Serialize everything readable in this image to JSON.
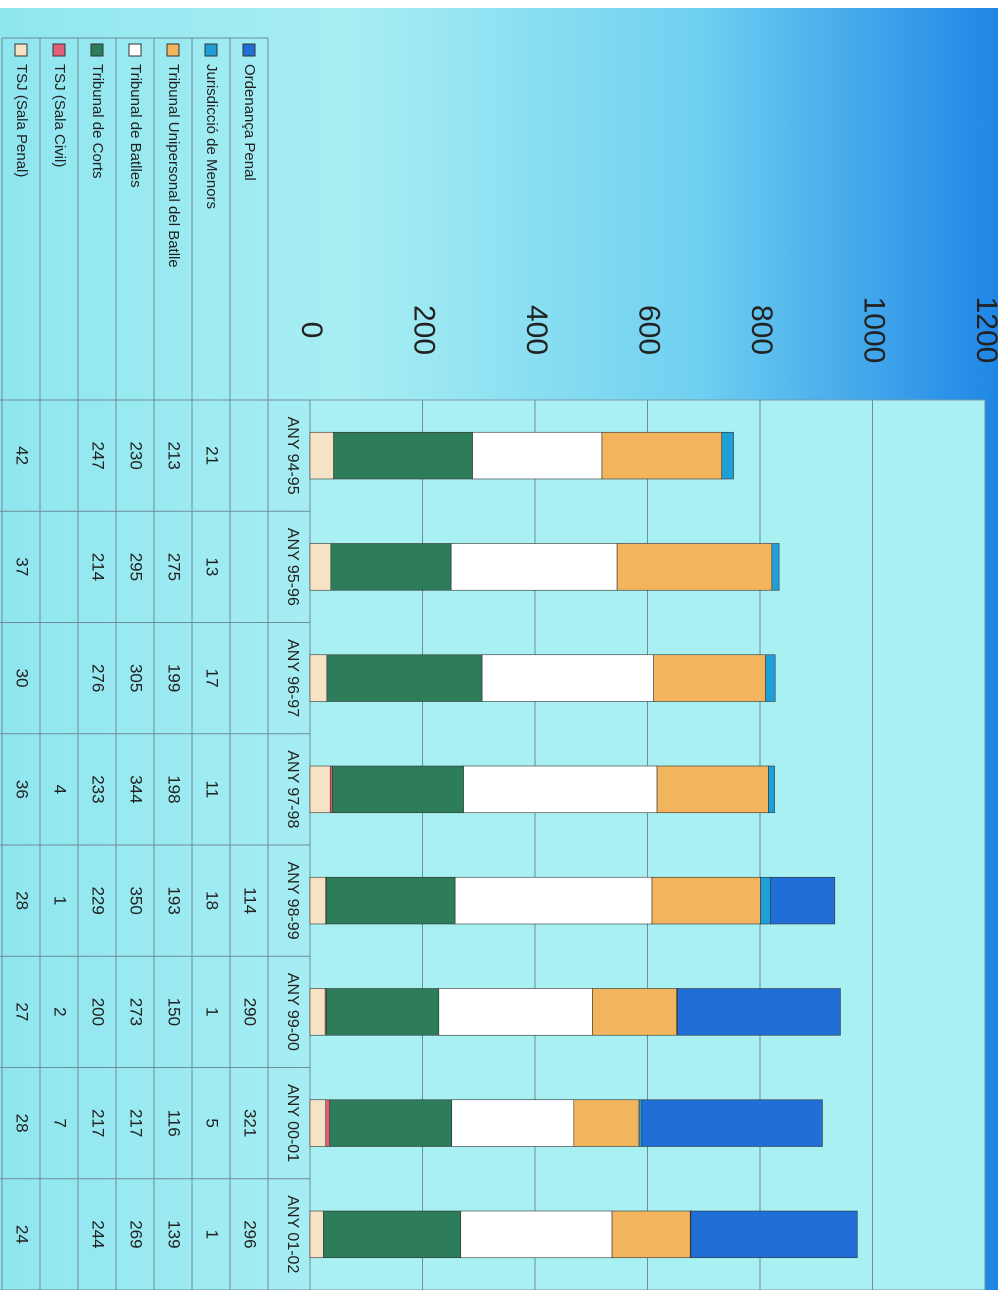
{
  "chart_data": {
    "type": "bar",
    "stacked": true,
    "categories": [
      "ANY 94-95",
      "ANY 95-96",
      "ANY 96-97",
      "ANY 97-98",
      "ANY 98-99",
      "ANY 99-00",
      "ANY 00-01",
      "ANY 01-02"
    ],
    "series": [
      {
        "name": "Ordenança Penal",
        "color": "#1f6fd6",
        "values": [
          null,
          null,
          null,
          null,
          114,
          290,
          321,
          296
        ]
      },
      {
        "name": "Jurisdicció de Menors",
        "color": "#1f9fd8",
        "values": [
          21,
          13,
          17,
          11,
          18,
          1,
          5,
          1
        ]
      },
      {
        "name": "Tribunal Unipersonal del Batlle",
        "color": "#f2b45c",
        "values": [
          213,
          275,
          199,
          198,
          193,
          150,
          116,
          139
        ]
      },
      {
        "name": "Tribunal de Batlles",
        "color": "#ffffff",
        "values": [
          230,
          295,
          305,
          344,
          350,
          273,
          217,
          269
        ]
      },
      {
        "name": "Tribunal de Corts",
        "color": "#2e7d5a",
        "values": [
          247,
          214,
          276,
          233,
          229,
          200,
          217,
          244
        ]
      },
      {
        "name": "TSJ (Sala Civil)",
        "color": "#e0607a",
        "values": [
          null,
          null,
          null,
          4,
          1,
          2,
          7,
          null
        ]
      },
      {
        "name": "TSJ (Sala Penal)",
        "color": "#f6e2c4",
        "values": [
          42,
          37,
          30,
          36,
          28,
          27,
          28,
          24
        ]
      }
    ],
    "ylim": [
      0,
      1200
    ],
    "yticks": [
      0,
      200,
      400,
      600,
      800,
      1000,
      1200
    ],
    "grid": true,
    "legend": "data-table"
  },
  "table": {
    "rows": [
      {
        "label": "Ordenança Penal",
        "cells": [
          "",
          "",
          "",
          "",
          "114",
          "290",
          "321",
          "296"
        ]
      },
      {
        "label": "Jurisdicció de Menors",
        "cells": [
          "21",
          "13",
          "17",
          "11",
          "18",
          "1",
          "5",
          "1"
        ]
      },
      {
        "label": "Tribunal Unipersonal del Batlle",
        "cells": [
          "213",
          "275",
          "199",
          "198",
          "193",
          "150",
          "116",
          "139"
        ]
      },
      {
        "label": "Tribunal de Batlles",
        "cells": [
          "230",
          "295",
          "305",
          "344",
          "350",
          "273",
          "217",
          "269"
        ]
      },
      {
        "label": "Tribunal de Corts",
        "cells": [
          "247",
          "214",
          "276",
          "233",
          "229",
          "200",
          "217",
          "244"
        ]
      },
      {
        "label": "TSJ (Sala Civil)",
        "cells": [
          "",
          "",
          "",
          "4",
          "1",
          "2",
          "7",
          ""
        ]
      },
      {
        "label": "TSJ (Sala Penal)",
        "cells": [
          "42",
          "37",
          "30",
          "36",
          "28",
          "27",
          "28",
          "24"
        ]
      }
    ]
  }
}
